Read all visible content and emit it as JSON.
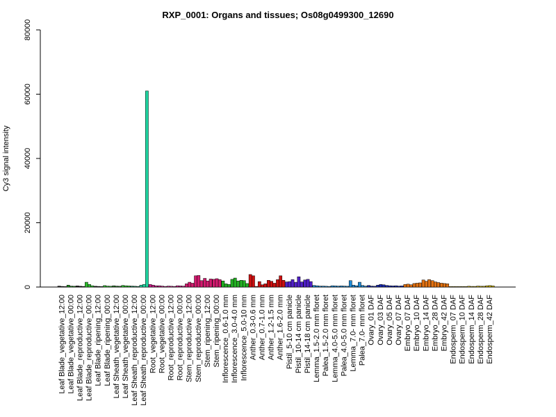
{
  "chart_data": {
    "type": "bar",
    "title": "RXP_0001: Organs and tissues; Os08g0499300_12690",
    "xlabel": "",
    "ylabel": "Cy3 signal intensity",
    "ylim": [
      0,
      80000
    ],
    "yticks": [
      "0",
      "20000",
      "40000",
      "60000",
      "80000"
    ],
    "grid": false,
    "legend": "none",
    "categories": [
      "Leaf Blade_vegetative_12:00",
      "Leaf Blade_vegetative_00:00",
      "Leaf Blade_reproductive_12:00",
      "Leaf Blade_reproductive_00:00",
      "Leaf Blade_ripening_12:00",
      "Leaf Blade_ripening_00:00",
      "Leaf Sheath_vegetative_12:00",
      "Leaf Sheath_vegetative_00:00",
      "Leaf Sheath_reproductive_12:00",
      "Leaf Sheath_reproductive_00:00",
      "Root_vegetative_12:00",
      "Root_vegetative_00:00",
      "Root_reproductive_12:00",
      "Root_reproductive_00:00",
      "Stem_reproductive_12:00",
      "Stem_reproductive_00:00",
      "Stem_ripening_12:00",
      "Stem_ripening_00:00",
      "Inflorescence_0.6-1.0 mm",
      "Inflorescence_3.0-4.0 mm",
      "Inflorescence_5.0-10 mm",
      "Anther_0.3-0.6 mm",
      "Anther_0.7-1.0 mm",
      "Anther_1.2-1.5 mm",
      "Anther_1.6-2.0 mm",
      "Pistil_5-10 cm panicle",
      "Pistil_10-14 cm panicle",
      "Pistil_14-18 cm panicle",
      "Lemma_1.5-2.0 mm floret",
      "Palea_1.5-2.0 mm floret",
      "Lemma_4.0-5.0 mm floret",
      "Palea_4.0-5.0 mm floret",
      "Lemma_7.0- mm floret",
      "Palea_7.0- mm floret",
      "Ovary_01 DAF",
      "Ovary_03 DAF",
      "Ovary_05 DAF",
      "Ovary_07 DAF",
      "Embryo_07 DAF",
      "Embryo_10 DAF",
      "Embryo_14 DAF",
      "Embryo_28 DAF",
      "Embryo_42 DAF",
      "Endosperm_07 DAF",
      "Endosperm_10 DAF",
      "Endosperm_14 DAF",
      "Endosperm_28 DAF",
      "Endosperm_42 DAF"
    ],
    "colors": [
      "#1a1a1a",
      "#1f8a1f",
      "#1a1a1a",
      "#2ebd2e",
      "#1a1a1a",
      "#2ebd2e",
      "#2a7a2a",
      "#2ebd2e",
      "#1a8a5a",
      "#1fd4a0",
      "#cc1f8a",
      "#cc1f8a",
      "#cc1f8a",
      "#cc1f8a",
      "#d11a6e",
      "#d11a6e",
      "#d11a6e",
      "#d11a6e",
      "#22b022",
      "#22b022",
      "#22b022",
      "#cc1010",
      "#cc1010",
      "#cc1010",
      "#cc1010",
      "#5020c8",
      "#5020c8",
      "#5020c8",
      "#1f8ad4",
      "#1f8ad4",
      "#1f8ad4",
      "#1f8ad4",
      "#1f8ad4",
      "#1f8ad4",
      "#1a2ab0",
      "#1a2ab0",
      "#1a2ab0",
      "#1a2ab0",
      "#e07010",
      "#e07010",
      "#e07010",
      "#e07010",
      "#e07010",
      "#c8b000",
      "#c8b000",
      "#c8b000",
      "#c8b000",
      "#c8b000"
    ],
    "values": [
      [
        300,
        200,
        150
      ],
      [
        600,
        300,
        250
      ],
      [
        350,
        250,
        200
      ],
      [
        1500,
        800,
        400
      ],
      [
        250,
        200,
        150
      ],
      [
        450,
        300,
        250
      ],
      [
        400,
        300,
        250
      ],
      [
        500,
        400,
        350
      ],
      [
        300,
        250,
        200
      ],
      [
        600,
        800,
        61000
      ],
      [
        800,
        600,
        400
      ],
      [
        400,
        300,
        200
      ],
      [
        300,
        250,
        200
      ],
      [
        400,
        350,
        300
      ],
      [
        1000,
        1500,
        1200
      ],
      [
        3500,
        3600,
        2000
      ],
      [
        2700,
        1900,
        2500
      ],
      [
        2400,
        2600,
        2300
      ],
      [
        1900,
        1000,
        800
      ],
      [
        2400,
        2800,
        1900
      ],
      [
        2100,
        2000,
        1100
      ],
      [
        3900,
        3500,
        200
      ],
      [
        1700,
        700,
        1000
      ],
      [
        2100,
        1800,
        1200
      ],
      [
        2300,
        3500,
        2100
      ],
      [
        1600,
        1700,
        2300
      ],
      [
        1500,
        3200,
        1600
      ],
      [
        2200,
        2400,
        1700
      ],
      [
        500,
        400,
        300
      ],
      [
        300,
        250,
        200
      ],
      [
        400,
        350,
        300
      ],
      [
        350,
        300,
        250
      ],
      [
        2000,
        600,
        400
      ],
      [
        1500,
        500,
        300
      ],
      [
        500,
        300,
        250
      ],
      [
        600,
        800,
        700
      ],
      [
        500,
        400,
        350
      ],
      [
        400,
        300,
        350
      ],
      [
        800,
        900,
        700
      ],
      [
        1100,
        1200,
        1300
      ],
      [
        2200,
        1800,
        2300
      ],
      [
        2000,
        1600,
        1400
      ],
      [
        1200,
        1100,
        1000
      ],
      [
        150,
        150,
        150
      ],
      [
        150,
        150,
        150
      ],
      [
        250,
        200,
        200
      ],
      [
        300,
        250,
        250
      ],
      [
        400,
        450,
        350
      ]
    ]
  }
}
